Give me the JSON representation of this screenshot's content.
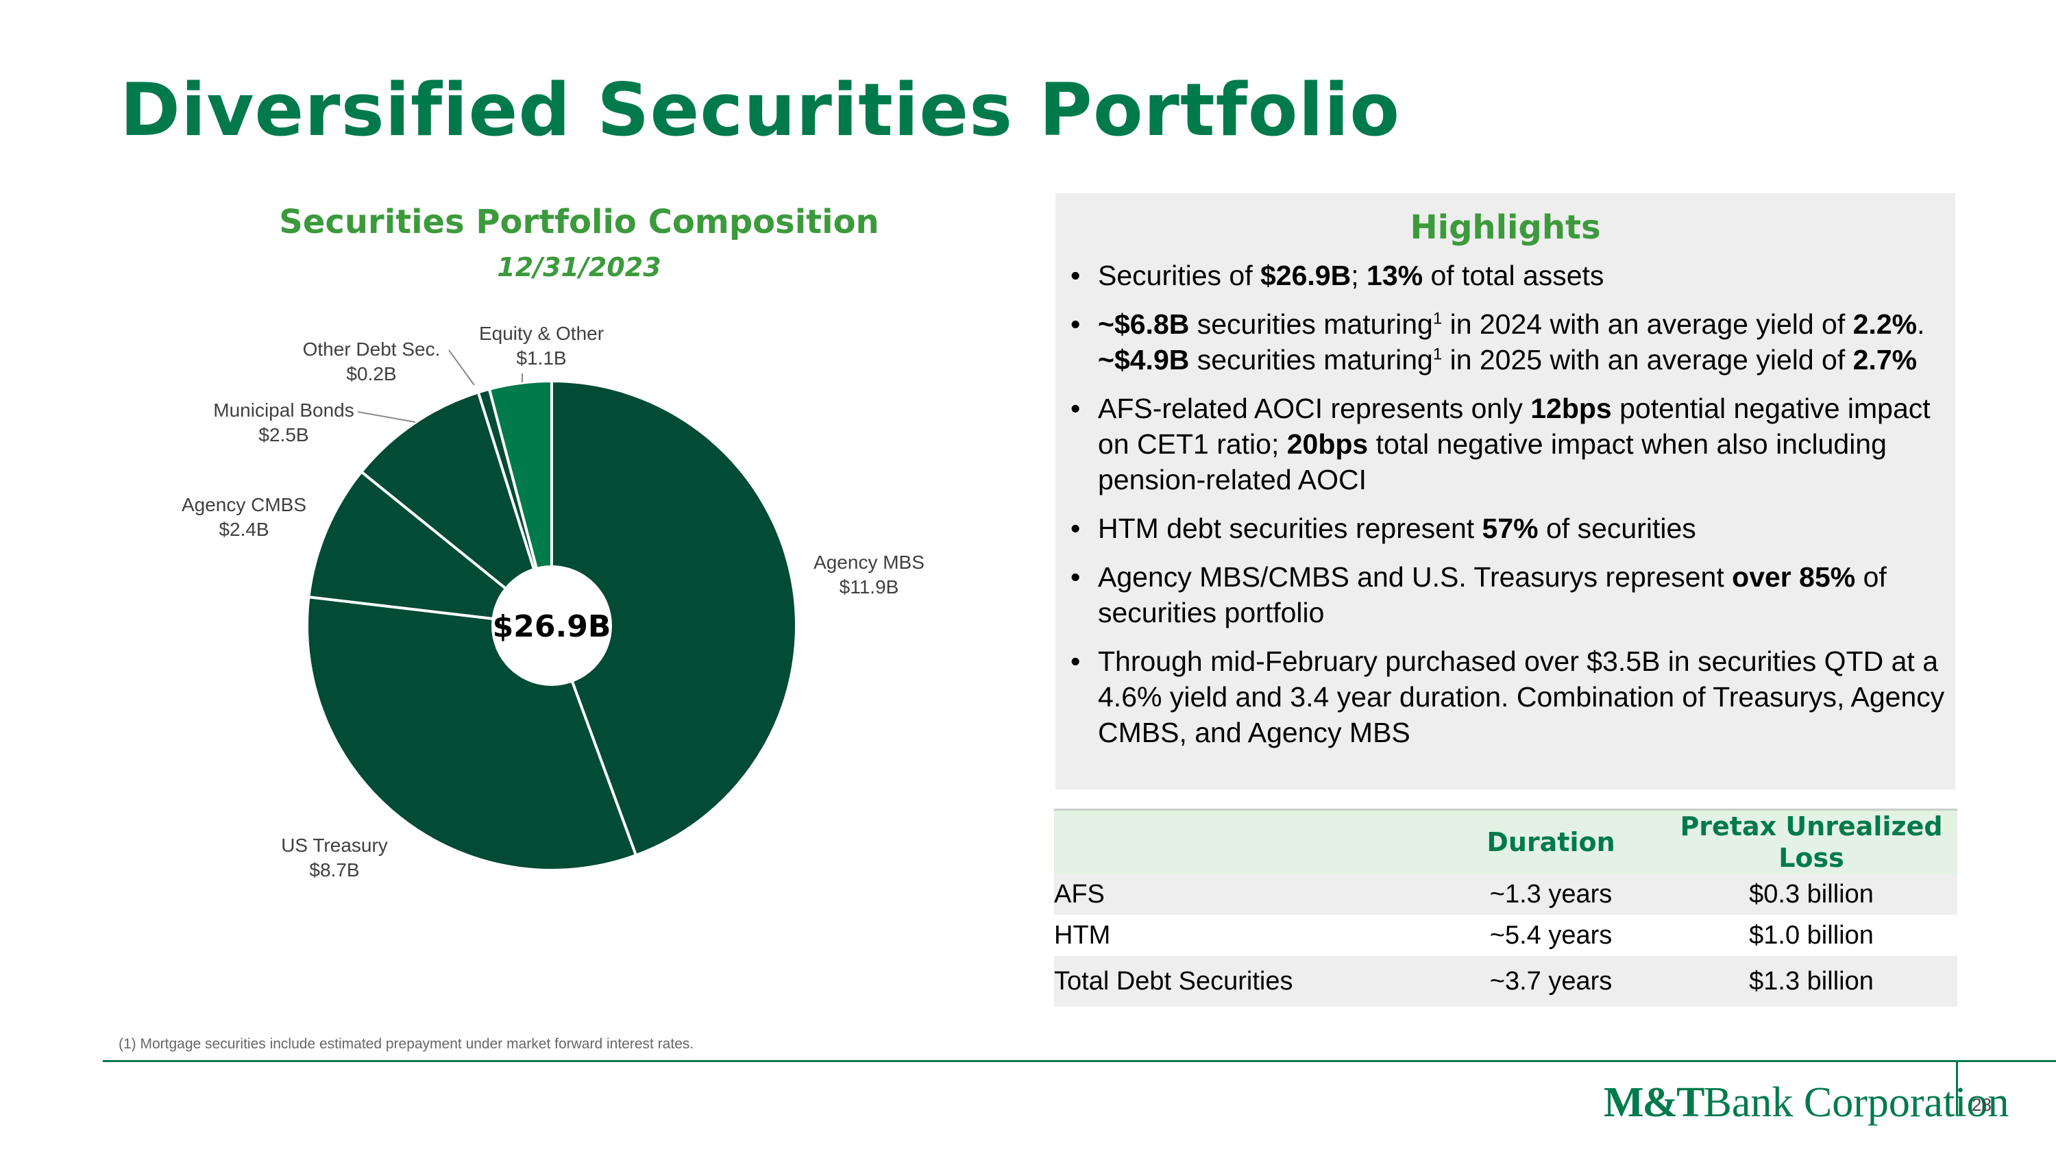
{
  "title": "Diversified Securities Portfolio",
  "colors": {
    "brand": "#007A4B",
    "title_green": "#3C9A3C",
    "slice_dark": "#024B34",
    "slice_accent": "#007A4B"
  },
  "chart_data": {
    "type": "pie",
    "title": "Securities Portfolio Composition",
    "subtitle": "12/31/2023",
    "center_label": "$26.9B",
    "unit": "$B",
    "slices": [
      {
        "name": "Agency MBS",
        "label": "$11.9B",
        "value": 11.9
      },
      {
        "name": "US Treasury",
        "label": "$8.7B",
        "value": 8.7
      },
      {
        "name": "Agency CMBS",
        "label": "$2.4B",
        "value": 2.4
      },
      {
        "name": "Municipal Bonds",
        "label": "$2.5B",
        "value": 2.5
      },
      {
        "name": "Other Debt Sec.",
        "label": "$0.2B",
        "value": 0.2
      },
      {
        "name": "Equity & Other",
        "label": "$1.1B",
        "value": 1.1
      }
    ]
  },
  "highlights": {
    "heading": "Highlights",
    "items": [
      [
        {
          "t": "Securities of "
        },
        {
          "b": "$26.9B"
        },
        {
          "t": "; "
        },
        {
          "b": "13%"
        },
        {
          "t": " of total assets"
        }
      ],
      [
        {
          "b": "~$6.8B"
        },
        {
          "t": " securities maturing"
        },
        {
          "sup": "1"
        },
        {
          "t": " in 2024 with an average yield of "
        },
        {
          "b": "2.2%"
        },
        {
          "t": ". "
        },
        {
          "b": "~$4.9B"
        },
        {
          "t": " securities maturing"
        },
        {
          "sup": "1"
        },
        {
          "t": " in 2025 with an average yield of "
        },
        {
          "b": "2.7%"
        }
      ],
      [
        {
          "t": "AFS-related AOCI represents only "
        },
        {
          "b": "12bps"
        },
        {
          "t": " potential negative impact on CET1 ratio; "
        },
        {
          "b": "20bps"
        },
        {
          "t": " total negative impact when also including pension-related AOCI"
        }
      ],
      [
        {
          "t": "HTM debt securities represent "
        },
        {
          "b": "57%"
        },
        {
          "t": " of securities"
        }
      ],
      [
        {
          "t": "Agency MBS/CMBS and U.S. Treasurys represent "
        },
        {
          "b": "over 85%"
        },
        {
          "t": " of securities portfolio"
        }
      ],
      [
        {
          "t": "Through mid-February purchased over $3.5B in securities QTD at a 4.6% yield and 3.4 year duration. Combination of Treasurys, Agency CMBS, and Agency MBS"
        }
      ]
    ]
  },
  "table": {
    "headers": [
      "",
      "Duration",
      "Pretax Unrealized Loss"
    ],
    "rows": [
      [
        "AFS",
        "~1.3 years",
        "$0.3 billion"
      ],
      [
        "HTM",
        "~5.4 years",
        "$1.0 billion"
      ],
      [
        "Total Debt Securities",
        "~3.7 years",
        "$1.3 billion"
      ]
    ]
  },
  "footnote": "(1) Mortgage securities include estimated prepayment under market forward interest rates.",
  "logo": {
    "mt": "M&T",
    "rest": "Bank Corporation"
  },
  "page_number": "28"
}
